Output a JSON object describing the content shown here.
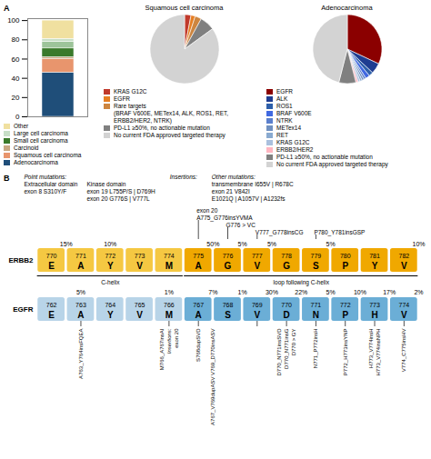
{
  "chart_data": [
    {
      "type": "bar",
      "stacked": true,
      "annotations": [
        "A"
      ],
      "categories": [
        null
      ],
      "series": [
        {
          "name": "Adenocarcinoma",
          "color": "#1f4e79",
          "values": [
            46
          ]
        },
        {
          "name": "Squamous cell carcinoma",
          "color": "#e8956d",
          "values": [
            14
          ]
        },
        {
          "name": "Carcinoid",
          "color": "#c8a882",
          "values": [
            2
          ]
        },
        {
          "name": "Small cell carcinoma",
          "color": "#3a7a2b",
          "values": [
            9
          ]
        },
        {
          "name": null,
          "color": "#9dc49a",
          "values": [
            7
          ]
        },
        {
          "name": "Large cell carcinoma",
          "color": "#c8dfc8",
          "values": [
            3
          ]
        },
        {
          "name": "Other",
          "color": "#f0e0a0",
          "values": [
            19
          ]
        }
      ],
      "ylim": [
        0,
        102
      ],
      "yticks": [
        0,
        20,
        40,
        60,
        80,
        100
      ],
      "tick_labels": "y",
      "legend": "bottom"
    },
    {
      "type": "pie",
      "title": "Squamous cell carcinoma",
      "categories": [
        "KRAS G12C",
        "EGFR",
        "Rare targets\n(BRAF V600E, METex14, ALK, ROS1, RET, ERBB2/HER2, NTRK)",
        "PD-L1 ≥50%, no actionable mutation",
        "No current FDA approved targeted therapy"
      ],
      "values": [
        3,
        2,
        3,
        7,
        85
      ],
      "colors": [
        "#c0392b",
        "#e67e22",
        "#cd853f",
        "#808080",
        "#d3d3d3"
      ],
      "legend": "bottom"
    },
    {
      "type": "pie",
      "title": "Adenocarcinoma",
      "categories": [
        "EGFR",
        "ALK",
        "ROS1",
        "BRAF V600E",
        "NTRK",
        "METex14",
        "RET",
        "KRAS G12C",
        "ERBB2/HER2",
        "PD-L1 ≥50%, no actionable mutation",
        "No current FDA approved targeted therapy"
      ],
      "values": [
        32,
        5,
        2,
        2,
        1,
        1,
        1,
        1,
        1,
        8,
        46
      ],
      "colors": [
        "#8b0000",
        "#1f3d91",
        "#2e5faa",
        "#4169e1",
        "#5b7fcc",
        "#7090c0",
        "#8aaad0",
        "#aac0de",
        "#ffb6c1",
        "#808080",
        "#d3d3d3"
      ],
      "legend": "bottom"
    },
    {
      "type": "sequence",
      "title": "ERBB2",
      "annotations": [
        "B",
        "Point mutations:",
        "Extracellular domain\nexon 8 S310Y/F",
        "Kinase domain\nexon 19 L755P/S | D769H\nexon 20 G776S | V777L",
        "Insertions:",
        {
          "x": 775,
          "text": "exon 20\nA775_G776insYVMA"
        },
        {
          "x": 776,
          "text": "G776 > VC"
        },
        {
          "x": 777,
          "text": "V777_G778insCG"
        },
        {
          "x": 779,
          "text": "P780_Y781insGSP"
        },
        "Other mutations:",
        "transmembrane I655V | R678C\nexon 21 V842I\nE1021Q | A1057V | A1232fs"
      ],
      "x": [
        770,
        771,
        772,
        773,
        774,
        775,
        776,
        777,
        778,
        779,
        780,
        781,
        782
      ],
      "residues": [
        "E",
        "A",
        "Y",
        "V",
        "M",
        "A",
        "G",
        "V",
        "G",
        "S",
        "P",
        "Y",
        "V"
      ],
      "colors": [
        "#f5c842",
        "#f5c842",
        "#f5c842",
        "#f5c842",
        "#f5c842",
        "#f0a800",
        "#f0a800",
        "#f0a800",
        "#f0a800",
        "#f0a800",
        "#f0a800",
        "#f0a800",
        "#f0a800"
      ],
      "xlim": [
        769.5,
        782.5
      ],
      "tick_labels": false,
      "percentages": [
        {
          "x": 770.5,
          "value": 15,
          "label": "15%"
        },
        {
          "x": 772,
          "value": 10,
          "label": "10%"
        },
        {
          "x": 775.5,
          "value": 50,
          "label": "50%"
        },
        {
          "x": 776.5,
          "value": 5,
          "label": "5%"
        },
        {
          "x": 777.5,
          "value": 5,
          "label": "5%"
        },
        {
          "x": 779.5,
          "value": 5,
          "label": "5%"
        },
        {
          "x": 782.5,
          "value": 10,
          "label": "10%"
        }
      ],
      "marked_residues": [
        775,
        776,
        777,
        779
      ],
      "regions": [
        {
          "label": "C-helix",
          "from": 770,
          "to": 774
        },
        {
          "label": "loop following C-helix",
          "from": 775,
          "to": 782
        }
      ]
    },
    {
      "type": "sequence",
      "title": "EGFR",
      "annotations": [
        {
          "x": 763,
          "text": "A763_Y764insFQEA"
        },
        {
          "x": 766,
          "text": "M766_A767insAI"
        },
        {
          "x": 766,
          "text": "Insertions:"
        },
        {
          "x": 766,
          "text": "exon 20"
        },
        {
          "x": 767,
          "text": "S768dupSVD"
        },
        {
          "x": 767.5,
          "text": "A767_V769dupASV V769_D770insASV"
        },
        {
          "x": 771,
          "text": "N771_P772insH"
        },
        {
          "x": 770,
          "text": "D770_N771insSVD"
        },
        {
          "x": 770,
          "text": "D770_N771insG"
        },
        {
          "x": 770,
          "text": "D770 > GY"
        },
        {
          "x": 772,
          "text": "P772_H773insYNP"
        },
        {
          "x": 773,
          "text": "H773_V774insH"
        },
        {
          "x": 773,
          "text": "H773_V774insNPH"
        },
        {
          "x": 774,
          "text": "V774_C775insHV"
        }
      ],
      "x": [
        762,
        763,
        764,
        765,
        766,
        767,
        768,
        769,
        770,
        771,
        772,
        773,
        774
      ],
      "residues": [
        "E",
        "A",
        "Y",
        "V",
        "M",
        "A",
        "S",
        "V",
        "D",
        "N",
        "P",
        "H",
        "V"
      ],
      "colors": [
        "#b8d4e8",
        "#b8d4e8",
        "#b8d4e8",
        "#b8d4e8",
        "#b8d4e8",
        "#6baed6",
        "#6baed6",
        "#6baed6",
        "#6baed6",
        "#6baed6",
        "#6baed6",
        "#6baed6",
        "#6baed6"
      ],
      "xlim": [
        761.5,
        774.5
      ],
      "tick_labels": false,
      "percentages": [
        {
          "x": 763,
          "value": 5,
          "label": "5%"
        },
        {
          "x": 766,
          "value": 1,
          "label": "1%"
        },
        {
          "x": 767.5,
          "value": 7,
          "label": "7%"
        },
        {
          "x": 768.5,
          "value": 1,
          "label": "1%"
        },
        {
          "x": 769.5,
          "value": 30,
          "label": "30%"
        },
        {
          "x": 770.5,
          "value": 22,
          "label": "22%"
        },
        {
          "x": 771.5,
          "value": 5,
          "label": "5%"
        },
        {
          "x": 772.5,
          "value": 10,
          "label": "10%"
        },
        {
          "x": 773.5,
          "value": 17,
          "label": "17%"
        },
        {
          "x": 774.5,
          "value": 2,
          "label": "2%"
        }
      ],
      "marked_residues": [
        763,
        766,
        767,
        769,
        770,
        771,
        772,
        773,
        774
      ]
    }
  ]
}
